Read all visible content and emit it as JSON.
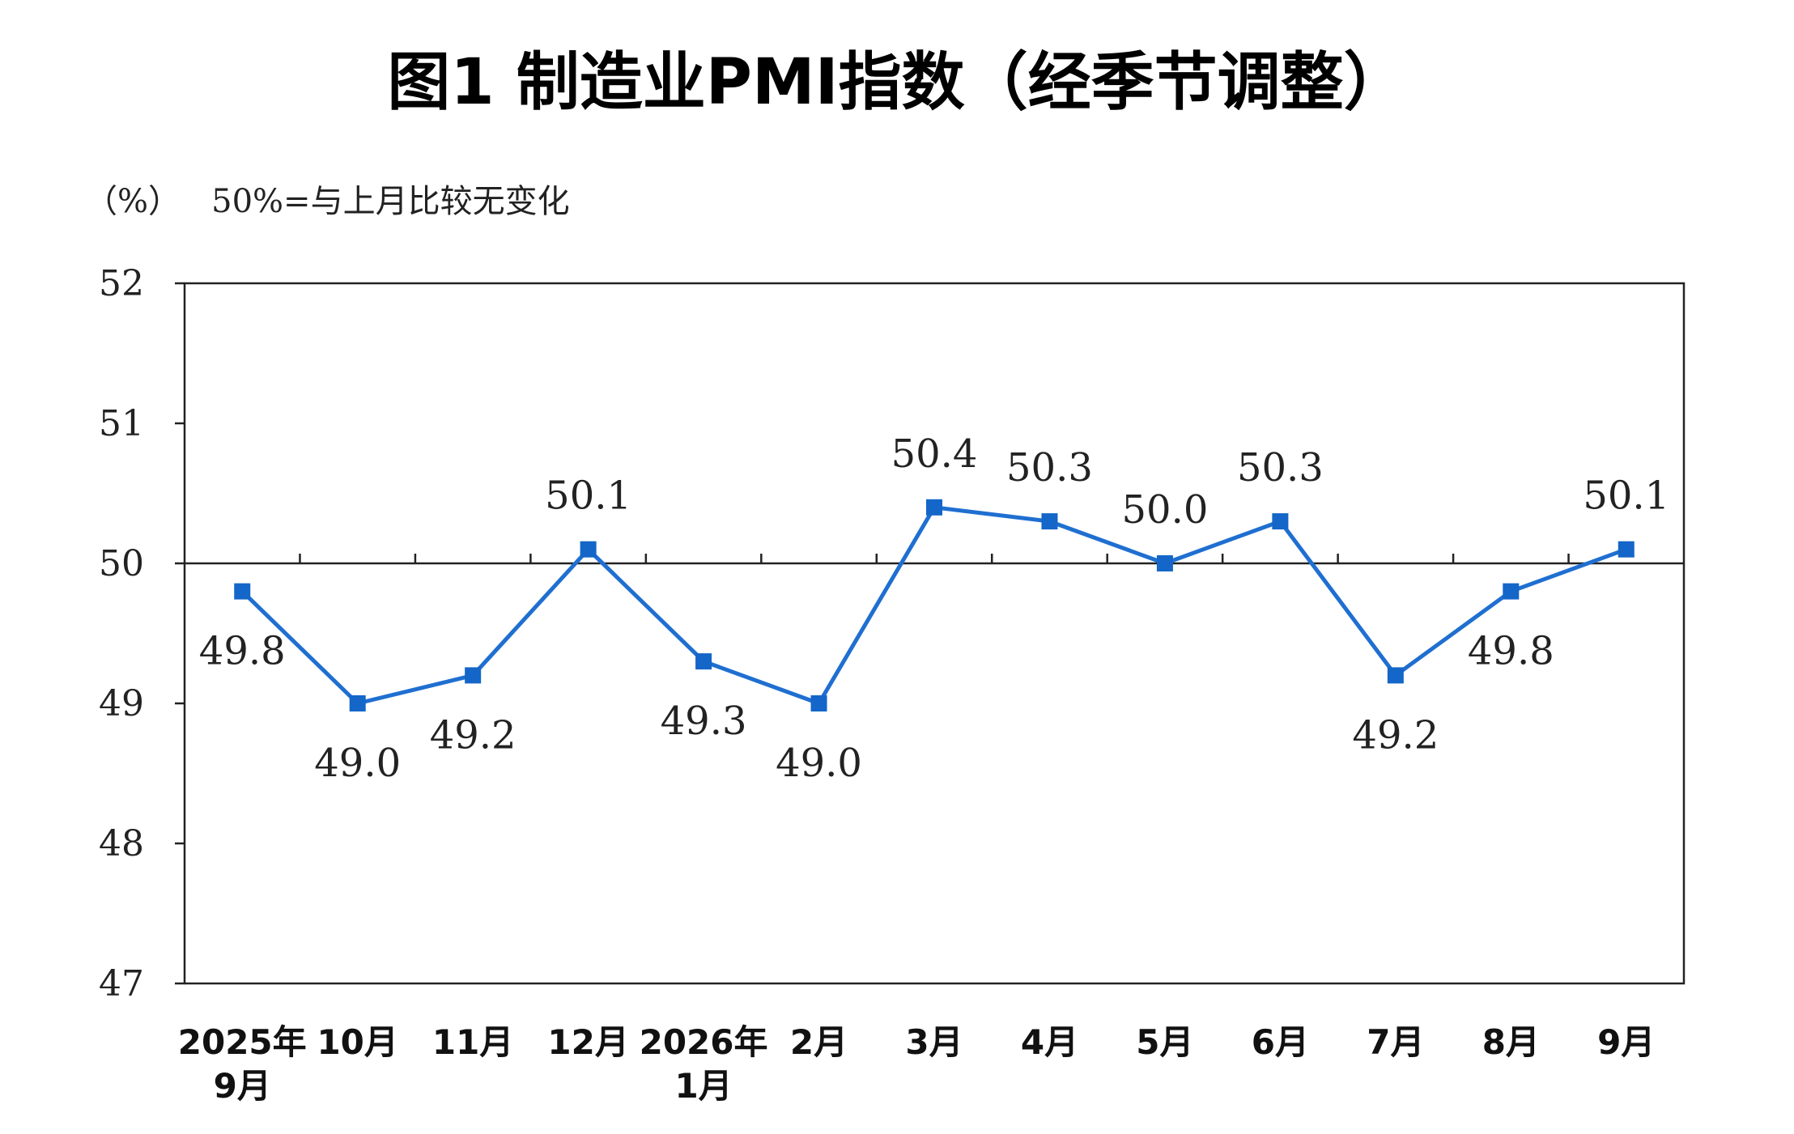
{
  "chart_data": {
    "type": "line",
    "title": "图1  制造业PMI指数（经季节调整）",
    "unit_label": "（%）   50%=与上月比较无变化",
    "ylim": [
      47,
      52
    ],
    "yticks": [
      "52",
      "51",
      "50",
      "49",
      "48",
      "47"
    ],
    "reference_line": 50,
    "categories": [
      [
        "2025年",
        "9月"
      ],
      [
        "10月"
      ],
      [
        "11月"
      ],
      [
        "12月"
      ],
      [
        "2026年",
        "1月"
      ],
      [
        "2月"
      ],
      [
        "3月"
      ],
      [
        "4月"
      ],
      [
        "5月"
      ],
      [
        "6月"
      ],
      [
        "7月"
      ],
      [
        "8月"
      ],
      [
        "9月"
      ]
    ],
    "values": [
      49.8,
      49.0,
      49.2,
      50.1,
      49.3,
      49.0,
      50.4,
      50.3,
      50.0,
      50.3,
      49.2,
      49.8,
      50.1
    ],
    "value_labels": [
      "49.8",
      "49.0",
      "49.2",
      "50.1",
      "49.3",
      "49.0",
      "50.4",
      "50.3",
      "50.0",
      "50.3",
      "49.2",
      "49.8",
      "50.1"
    ],
    "label_positions": [
      "below",
      "below",
      "below",
      "above",
      "below",
      "below",
      "above",
      "above",
      "above",
      "above",
      "below",
      "below",
      "above"
    ],
    "line_color": "#1f6fd1",
    "marker_color": "#1466c8"
  }
}
